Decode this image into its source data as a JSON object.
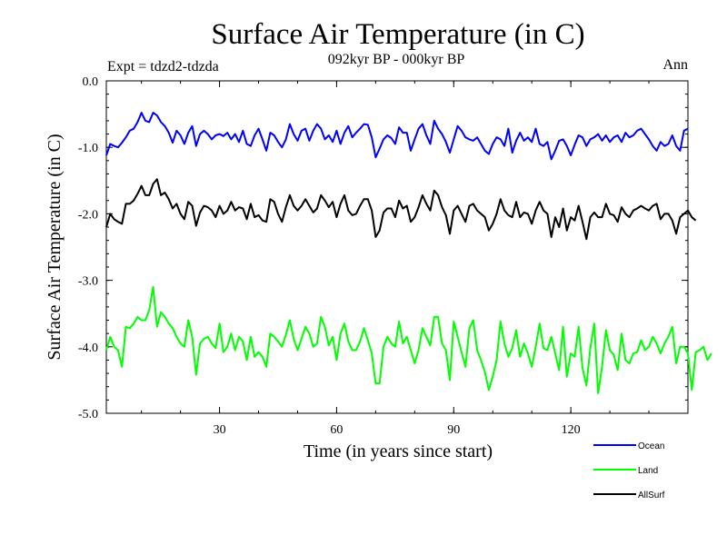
{
  "chart_data": {
    "type": "line",
    "title": "Surface Air Temperature (in C)",
    "subtitle": "092kyr BP - 000kyr BP",
    "experiment_label": "Expt = tdzd2-tdzda",
    "season_label": "Ann",
    "xlabel": "Time (in years since start)",
    "ylabel": "Surface Air Temperature (in C)",
    "xlim": [
      1,
      150
    ],
    "ylim": [
      -5.0,
      0.0
    ],
    "x_ticks": [
      30,
      60,
      90,
      120
    ],
    "x_tick_labels": [
      "30",
      "60",
      "90",
      "120"
    ],
    "y_ticks": [
      0.0,
      -1.0,
      -2.0,
      -3.0,
      -4.0,
      -5.0
    ],
    "y_tick_labels": [
      "0.0",
      "-1.0",
      "-2.0",
      "-3.0",
      "-4.0",
      "-5.0"
    ],
    "legend_position": "bottom-right",
    "series": [
      {
        "name": "Ocean",
        "color": "#0000ff",
        "values": [
          -1.12,
          -0.95,
          -0.98,
          -1.0,
          -0.93,
          -0.85,
          -0.75,
          -0.72,
          -0.62,
          -0.48,
          -0.6,
          -0.62,
          -0.48,
          -0.52,
          -0.62,
          -0.68,
          -0.78,
          -0.93,
          -0.75,
          -0.82,
          -0.95,
          -0.78,
          -0.68,
          -0.98,
          -0.8,
          -0.75,
          -0.8,
          -0.88,
          -0.82,
          -0.8,
          -0.83,
          -0.78,
          -0.88,
          -0.8,
          -0.92,
          -0.75,
          -0.95,
          -0.98,
          -0.82,
          -0.72,
          -0.88,
          -1.05,
          -0.78,
          -0.82,
          -0.92,
          -1.0,
          -0.88,
          -0.65,
          -0.8,
          -0.9,
          -0.75,
          -0.72,
          -0.9,
          -0.75,
          -0.65,
          -0.72,
          -0.88,
          -0.82,
          -0.92,
          -0.75,
          -0.95,
          -0.78,
          -0.68,
          -0.85,
          -0.78,
          -0.72,
          -0.65,
          -0.66,
          -0.85,
          -1.15,
          -1.02,
          -0.88,
          -0.82,
          -0.86,
          -0.95,
          -0.7,
          -0.78,
          -0.78,
          -1.05,
          -0.88,
          -0.72,
          -0.65,
          -0.82,
          -0.95,
          -0.6,
          -0.72,
          -0.8,
          -0.92,
          -1.08,
          -0.88,
          -0.68,
          -0.75,
          -0.85,
          -0.88,
          -0.9,
          -0.85,
          -0.95,
          -1.05,
          -1.1,
          -0.95,
          -0.85,
          -0.88,
          -0.98,
          -0.72,
          -1.08,
          -0.9,
          -0.78,
          -0.9,
          -0.85,
          -0.92,
          -0.72,
          -0.95,
          -0.98,
          -0.92,
          -1.18,
          -1.05,
          -0.9,
          -0.88,
          -0.98,
          -1.12,
          -0.96,
          -0.82,
          -0.85,
          -0.98,
          -0.88,
          -0.85,
          -0.8,
          -0.9,
          -0.82,
          -0.92,
          -0.85,
          -0.82,
          -0.92,
          -0.78,
          -0.85,
          -0.82,
          -0.75,
          -0.72,
          -0.8,
          -0.88,
          -0.98,
          -1.05,
          -0.92,
          -0.98,
          -0.95,
          -0.82,
          -0.98,
          -1.05,
          -0.75,
          -0.72
        ]
      },
      {
        "name": "Land",
        "color": "#00ff00",
        "values": [
          -4.05,
          -3.85,
          -4.0,
          -4.05,
          -4.3,
          -3.7,
          -3.72,
          -3.65,
          -3.55,
          -3.6,
          -3.6,
          -3.45,
          -3.1,
          -3.7,
          -3.48,
          -3.55,
          -3.65,
          -3.72,
          -3.85,
          -3.95,
          -4.0,
          -3.6,
          -3.85,
          -4.42,
          -3.95,
          -3.88,
          -3.85,
          -3.95,
          -4.02,
          -3.65,
          -4.08,
          -4.0,
          -3.8,
          -4.05,
          -3.85,
          -3.92,
          -4.2,
          -3.85,
          -4.15,
          -4.08,
          -4.15,
          -4.3,
          -3.8,
          -3.85,
          -3.92,
          -4.0,
          -3.82,
          -3.6,
          -3.88,
          -4.05,
          -3.88,
          -3.7,
          -3.8,
          -4.0,
          -3.95,
          -3.55,
          -3.7,
          -3.98,
          -3.85,
          -4.2,
          -3.8,
          -3.65,
          -3.92,
          -4.05,
          -4.05,
          -3.92,
          -3.72,
          -3.9,
          -4.1,
          -4.55,
          -4.55,
          -4.0,
          -3.85,
          -3.95,
          -4.0,
          -3.62,
          -3.95,
          -3.85,
          -4.05,
          -4.25,
          -4.05,
          -3.72,
          -3.85,
          -3.98,
          -3.55,
          -3.55,
          -3.95,
          -4.05,
          -4.5,
          -3.62,
          -3.85,
          -4.08,
          -4.3,
          -3.72,
          -3.6,
          -4.05,
          -4.2,
          -4.38,
          -4.65,
          -4.45,
          -4.2,
          -3.62,
          -3.95,
          -4.15,
          -4.02,
          -3.75,
          -4.15,
          -3.95,
          -4.1,
          -4.3,
          -4.0,
          -3.65,
          -4.02,
          -4.05,
          -3.85,
          -4.1,
          -4.35,
          -3.7,
          -4.45,
          -4.1,
          -4.15,
          -3.7,
          -4.32,
          -4.58,
          -4.02,
          -3.65,
          -4.7,
          -4.3,
          -3.75,
          -4.05,
          -4.12,
          -4.35,
          -3.8,
          -4.2,
          -4.25,
          -4.1,
          -4.08,
          -3.9,
          -4.05,
          -4.0,
          -3.85,
          -3.95,
          -4.1,
          -3.95,
          -3.85,
          -3.7,
          -4.25,
          -4.0,
          -4.0,
          -4.1,
          -4.65,
          -4.08,
          -4.05,
          -4.0,
          -4.2,
          -4.1
        ]
      },
      {
        "name": "AllSurf",
        "color": "#000000",
        "values": [
          -2.2,
          -2.0,
          -2.08,
          -2.12,
          -2.15,
          -1.85,
          -1.85,
          -1.8,
          -1.7,
          -1.58,
          -1.72,
          -1.72,
          -1.55,
          -1.48,
          -1.72,
          -1.68,
          -1.78,
          -1.92,
          -1.85,
          -2.0,
          -2.08,
          -1.82,
          -1.88,
          -2.18,
          -1.98,
          -1.88,
          -1.9,
          -1.95,
          -2.05,
          -1.88,
          -2.0,
          -1.95,
          -1.82,
          -1.95,
          -1.9,
          -1.92,
          -2.08,
          -1.85,
          -2.05,
          -2.02,
          -2.1,
          -2.12,
          -1.78,
          -1.82,
          -2.0,
          -2.12,
          -1.9,
          -1.72,
          -1.88,
          -1.95,
          -1.88,
          -1.78,
          -1.88,
          -1.98,
          -1.92,
          -1.72,
          -1.8,
          -1.9,
          -1.82,
          -2.05,
          -1.85,
          -1.72,
          -1.95,
          -2.02,
          -2.0,
          -1.88,
          -1.78,
          -1.78,
          -1.95,
          -2.35,
          -2.25,
          -1.98,
          -1.92,
          -1.92,
          -2.05,
          -1.8,
          -1.92,
          -1.88,
          -2.12,
          -2.05,
          -1.9,
          -1.72,
          -1.85,
          -1.95,
          -1.65,
          -1.72,
          -1.9,
          -2.02,
          -2.3,
          -1.95,
          -1.88,
          -2.0,
          -2.12,
          -1.88,
          -1.85,
          -1.95,
          -2.0,
          -2.05,
          -2.25,
          -2.15,
          -2.0,
          -1.78,
          -1.95,
          -2.02,
          -2.05,
          -1.82,
          -2.05,
          -1.98,
          -2.0,
          -2.15,
          -1.95,
          -1.82,
          -1.95,
          -2.0,
          -2.35,
          -2.05,
          -2.2,
          -1.92,
          -2.25,
          -2.05,
          -2.1,
          -1.88,
          -2.12,
          -2.38,
          -2.05,
          -1.98,
          -2.05,
          -2.05,
          -1.85,
          -2.0,
          -2.02,
          -2.12,
          -1.9,
          -2.0,
          -2.05,
          -1.95,
          -1.92,
          -1.88,
          -1.92,
          -1.95,
          -1.88,
          -1.85,
          -2.08,
          -2.0,
          -2.0,
          -2.1,
          -2.3,
          -2.05,
          -2.0,
          -1.95,
          -2.05,
          -2.1
        ]
      }
    ]
  }
}
